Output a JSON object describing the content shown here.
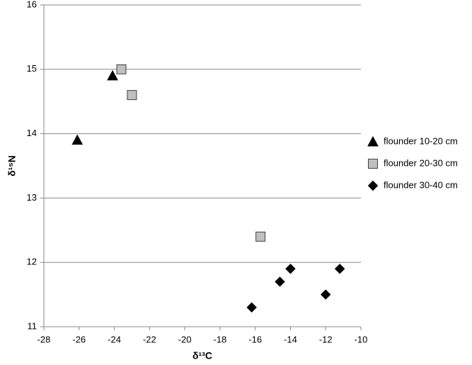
{
  "chart_data": {
    "type": "scatter",
    "xlabel": "δ¹³C",
    "ylabel": "δ¹⁵N",
    "series": [
      {
        "name": "flounder 10-20 cm",
        "color": "#000000",
        "marker": "triangle",
        "x": [
          -26.1,
          -24.1
        ],
        "values": [
          13.9,
          14.9
        ]
      },
      {
        "name": "flounder 20-30 cm",
        "color": "#bfbfbf",
        "marker": "square",
        "x": [
          -23.6,
          -23.0,
          -15.7
        ],
        "values": [
          15.0,
          14.6,
          12.4
        ]
      },
      {
        "name": "flounder 30-40 cm",
        "color": "#000000",
        "marker": "diamond",
        "x": [
          -16.2,
          -14.6,
          -14.0,
          -12.0,
          -11.2
        ],
        "values": [
          11.3,
          11.7,
          11.9,
          11.5,
          11.9
        ]
      }
    ],
    "xlim": [
      -28,
      -10
    ],
    "xticks": [
      -28,
      -26,
      -24,
      -22,
      -20,
      -18,
      -16,
      -14,
      -12,
      -10
    ],
    "ylim": [
      11,
      16
    ],
    "yticks": [
      11,
      12,
      13,
      14,
      15,
      16
    ],
    "grid": true,
    "legend": "right"
  }
}
